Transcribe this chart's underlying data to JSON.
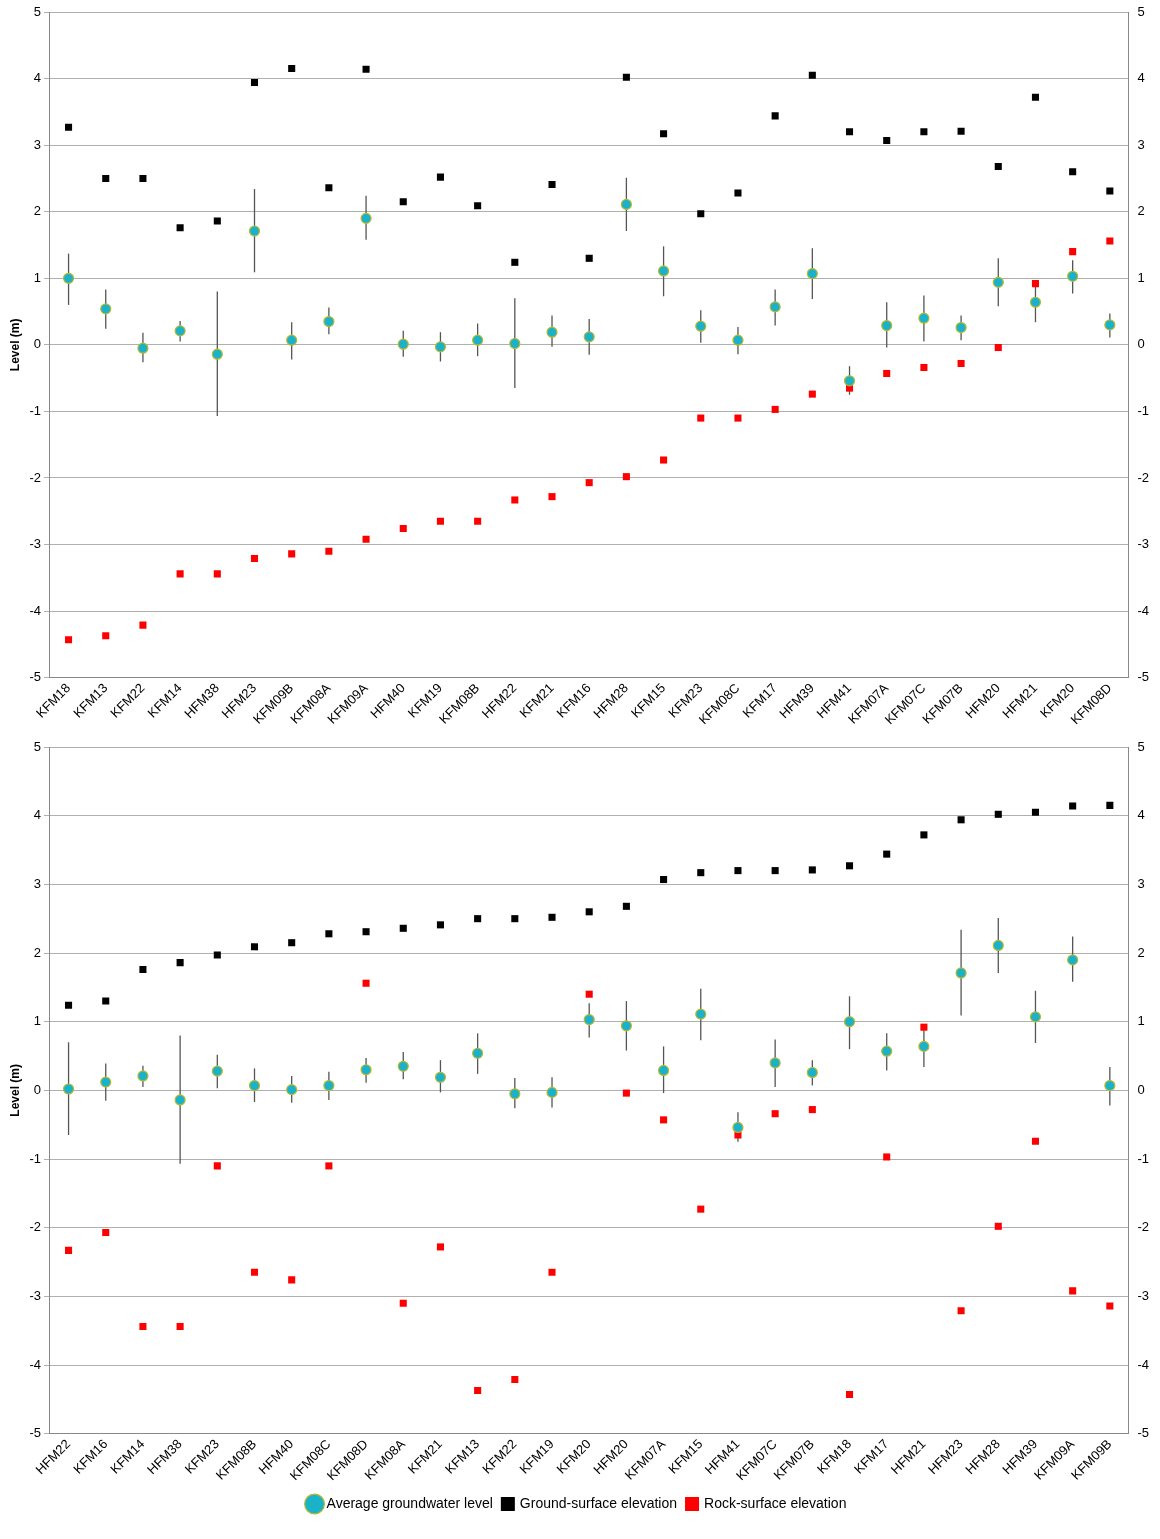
{
  "chart_data": [
    {
      "type": "scatter",
      "ylabel": "Level (m)",
      "categories": [
        "KFM18",
        "KFM13",
        "KFM22",
        "KFM14",
        "HFM38",
        "HFM23",
        "KFM09B",
        "KFM08A",
        "KFM09A",
        "HFM40",
        "KFM19",
        "KFM08B",
        "HFM22",
        "KFM21",
        "KFM16",
        "HFM28",
        "KFM15",
        "KFM23",
        "KFM08C",
        "KFM17",
        "HFM39",
        "HFM41",
        "KFM07A",
        "KFM07C",
        "KFM07B",
        "HFM20",
        "HFM21",
        "KFM20",
        "KFM08D"
      ],
      "series": [
        {
          "marker": "circle",
          "color": "#1ab2c9",
          "values": [
            1.0,
            0.54,
            -0.05,
            0.21,
            -0.14,
            1.71,
            0.07,
            0.35,
            1.9,
            0.01,
            -0.03,
            0.07,
            0.02,
            0.19,
            0.12,
            2.11,
            1.11,
            0.28,
            0.07,
            0.57,
            1.07,
            -0.54,
            0.29,
            0.4,
            0.26,
            0.94,
            0.64,
            1.03,
            0.3
          ],
          "errors": [
            [
              0.6,
              1.37
            ],
            [
              0.24,
              0.83
            ],
            [
              -0.26,
              0.18
            ],
            [
              0.05,
              0.36
            ],
            [
              -1.07,
              0.8
            ],
            [
              1.09,
              2.34
            ],
            [
              -0.22,
              0.34
            ],
            [
              0.16,
              0.56
            ],
            [
              1.58,
              2.24
            ],
            [
              -0.18,
              0.21
            ],
            [
              -0.25,
              0.19
            ],
            [
              -0.17,
              0.32
            ],
            [
              -0.65,
              0.7
            ],
            [
              -0.03,
              0.44
            ],
            [
              -0.15,
              0.39
            ],
            [
              1.71,
              2.51
            ],
            [
              0.73,
              1.48
            ],
            [
              0.03,
              0.52
            ],
            [
              -0.14,
              0.27
            ],
            [
              0.29,
              0.83
            ],
            [
              0.69,
              1.45
            ],
            [
              -0.75,
              -0.32
            ],
            [
              -0.04,
              0.64
            ],
            [
              0.05,
              0.74
            ],
            [
              0.07,
              0.44
            ],
            [
              0.58,
              1.3
            ],
            [
              0.34,
              0.88
            ],
            [
              0.77,
              1.27
            ],
            [
              0.11,
              0.47
            ]
          ]
        },
        {
          "marker": "square",
          "color": "#000000",
          "values": [
            3.27,
            2.5,
            2.5,
            1.76,
            1.86,
            3.94,
            4.15,
            2.36,
            4.14,
            2.15,
            2.52,
            2.09,
            1.24,
            2.41,
            1.3,
            4.02,
            3.17,
            1.97,
            2.28,
            3.44,
            4.05,
            3.2,
            3.07,
            3.2,
            3.21,
            2.68,
            3.72,
            2.6,
            2.31
          ]
        },
        {
          "marker": "square",
          "color": "#ff0000",
          "values": [
            -4.43,
            -4.37,
            -4.21,
            -3.44,
            -3.44,
            -3.21,
            -3.14,
            -3.1,
            -2.92,
            -2.76,
            -2.65,
            -2.65,
            -2.33,
            -2.28,
            -2.07,
            -1.98,
            -1.73,
            -1.1,
            -1.1,
            -0.97,
            -0.74,
            -0.65,
            -0.43,
            -0.34,
            -0.28,
            -0.04,
            0.92,
            1.4,
            1.56
          ]
        }
      ],
      "ylim": [
        -5,
        5
      ],
      "yticks": [
        -5,
        -4,
        -3,
        -2,
        -1,
        0,
        1,
        2,
        3,
        4,
        5
      ],
      "y2lim": [
        -5,
        5
      ],
      "y2ticks": [
        -5,
        -4,
        -3,
        -2,
        -1,
        0,
        1,
        2,
        3,
        4,
        5
      ],
      "grid": "y",
      "legend": false
    },
    {
      "type": "scatter",
      "ylabel": "Level (m)",
      "categories": [
        "HFM22",
        "KFM16",
        "KFM14",
        "HFM38",
        "KFM23",
        "KFM08B",
        "HFM40",
        "KFM08C",
        "KFM08D",
        "KFM08A",
        "KFM21",
        "KFM13",
        "KFM22",
        "KFM19",
        "KFM20",
        "HFM20",
        "KFM07A",
        "KFM15",
        "HFM41",
        "KFM07C",
        "KFM07B",
        "KFM18",
        "KFM17",
        "HFM21",
        "HFM23",
        "HFM28",
        "HFM39",
        "KFM09A",
        "KFM09B"
      ],
      "series": [
        {
          "marker": "circle",
          "name": "Average groundwater level",
          "color": "#1ab2c9",
          "values": [
            0.02,
            0.12,
            0.21,
            -0.14,
            0.28,
            0.07,
            0.01,
            0.07,
            0.3,
            0.35,
            0.19,
            0.54,
            -0.05,
            -0.03,
            1.03,
            0.94,
            0.29,
            1.11,
            -0.54,
            0.4,
            0.26,
            1.0,
            0.57,
            0.64,
            1.71,
            2.11,
            1.07,
            1.9,
            0.07
          ],
          "errors": [
            [
              -0.65,
              0.7
            ],
            [
              -0.15,
              0.39
            ],
            [
              0.05,
              0.36
            ],
            [
              -1.07,
              0.8
            ],
            [
              0.03,
              0.52
            ],
            [
              -0.17,
              0.32
            ],
            [
              -0.18,
              0.21
            ],
            [
              -0.14,
              0.27
            ],
            [
              0.11,
              0.47
            ],
            [
              0.16,
              0.56
            ],
            [
              -0.03,
              0.44
            ],
            [
              0.24,
              0.83
            ],
            [
              -0.26,
              0.18
            ],
            [
              -0.25,
              0.19
            ],
            [
              0.77,
              1.27
            ],
            [
              0.58,
              1.3
            ],
            [
              -0.04,
              0.64
            ],
            [
              0.73,
              1.48
            ],
            [
              -0.75,
              -0.32
            ],
            [
              0.05,
              0.74
            ],
            [
              0.07,
              0.44
            ],
            [
              0.6,
              1.37
            ],
            [
              0.29,
              0.83
            ],
            [
              0.34,
              0.88
            ],
            [
              1.09,
              2.34
            ],
            [
              1.71,
              2.51
            ],
            [
              0.69,
              1.45
            ],
            [
              1.58,
              2.24
            ],
            [
              -0.22,
              0.34
            ]
          ]
        },
        {
          "marker": "square",
          "name": "Ground-surface elevation",
          "color": "#000000",
          "values": [
            1.24,
            1.3,
            1.76,
            1.86,
            1.97,
            2.09,
            2.15,
            2.28,
            2.31,
            2.36,
            2.41,
            2.5,
            2.5,
            2.52,
            2.6,
            2.68,
            3.07,
            3.17,
            3.2,
            3.2,
            3.21,
            3.27,
            3.44,
            3.72,
            3.94,
            4.02,
            4.05,
            4.14,
            4.15
          ]
        },
        {
          "marker": "square",
          "name": "Rock-surface elevation",
          "color": "#ff0000",
          "values": [
            -2.33,
            -2.07,
            -3.44,
            -3.44,
            -1.1,
            -2.65,
            -2.76,
            -1.1,
            1.56,
            -3.1,
            -2.28,
            -4.37,
            -4.21,
            -2.65,
            1.4,
            -0.04,
            -0.43,
            -1.73,
            -0.65,
            -0.34,
            -0.28,
            -4.43,
            -0.97,
            0.92,
            -3.21,
            -1.98,
            -0.74,
            -2.92,
            -3.14
          ]
        }
      ],
      "ylim": [
        -5,
        5
      ],
      "yticks": [
        -5,
        -4,
        -3,
        -2,
        -1,
        0,
        1,
        2,
        3,
        4,
        5
      ],
      "y2lim": [
        -5,
        5
      ],
      "y2ticks": [
        -5,
        -4,
        -3,
        -2,
        -1,
        0,
        1,
        2,
        3,
        4,
        5
      ],
      "grid": "y",
      "legend": "bottom"
    }
  ]
}
